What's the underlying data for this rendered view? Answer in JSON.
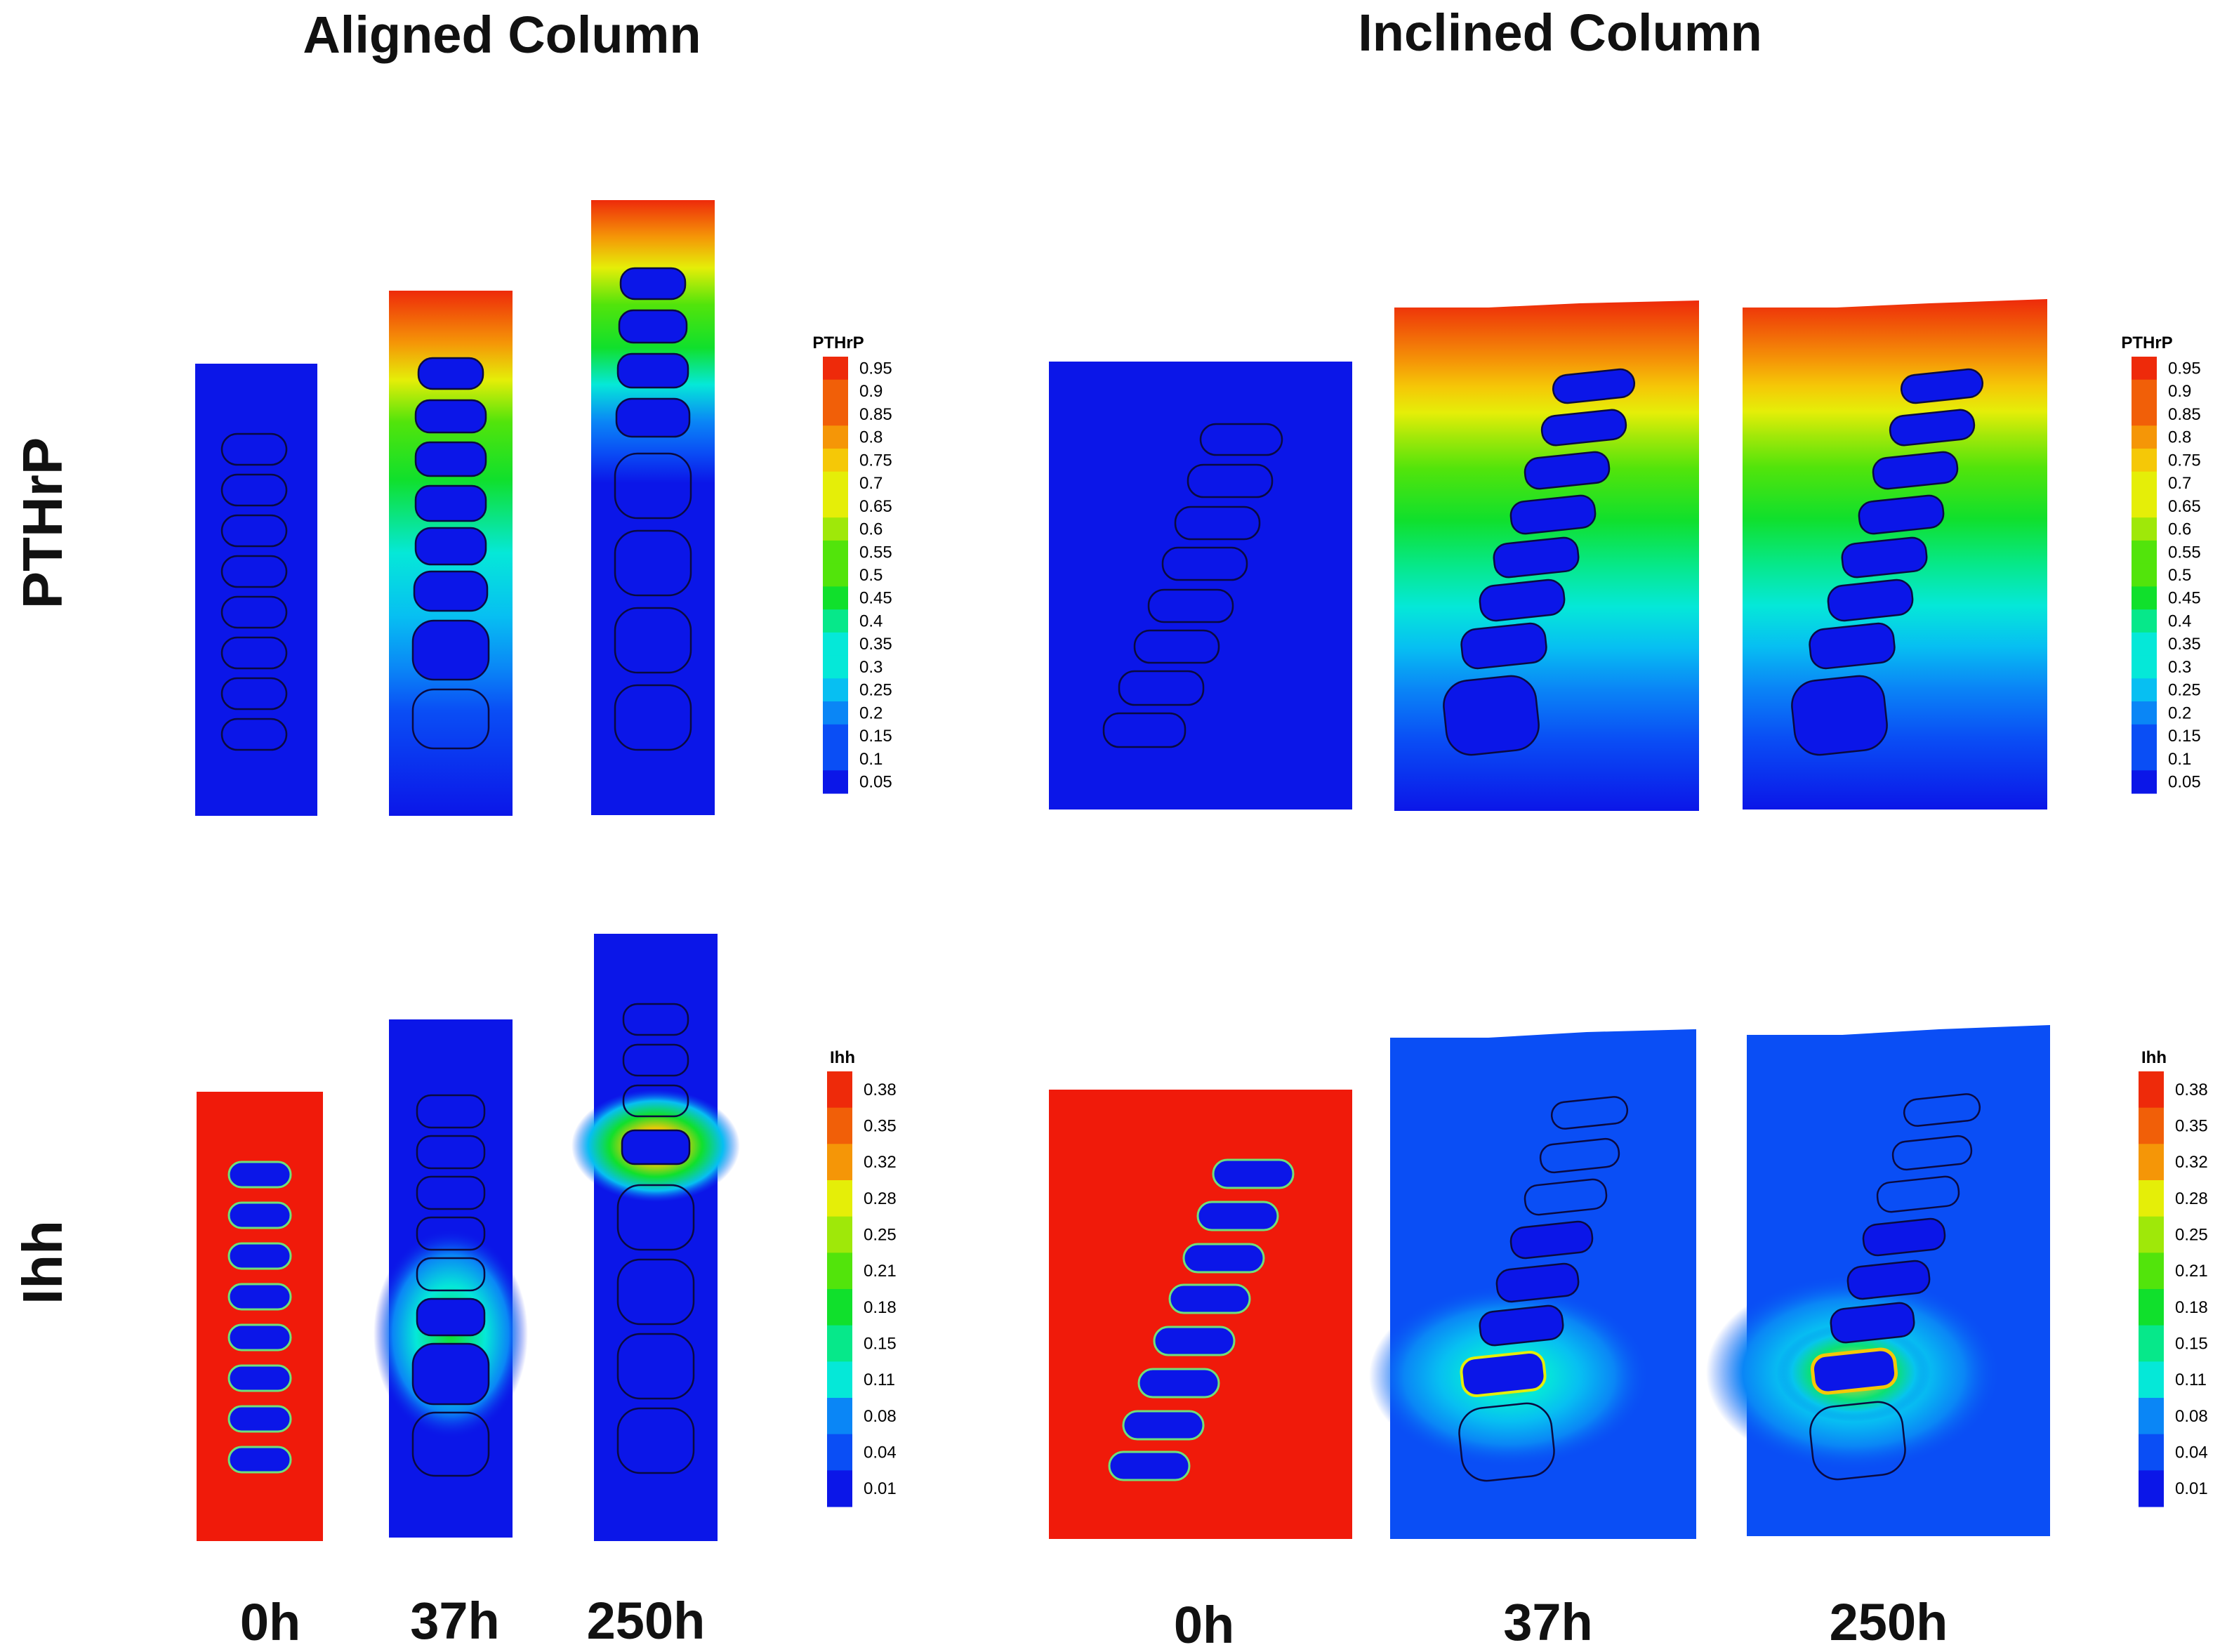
{
  "titles": {
    "aligned": "Aligned Column",
    "inclined": "Inclined Column"
  },
  "rows": {
    "pthrp": "PTHrP",
    "ihh": "Ihh"
  },
  "times": [
    "0h",
    "37h",
    "250h"
  ],
  "colorbars": {
    "pthrp": {
      "title": "PTHrP",
      "ticks": [
        "0.95",
        "0.9",
        "0.85",
        "0.8",
        "0.75",
        "0.7",
        "0.65",
        "0.6",
        "0.55",
        "0.5",
        "0.45",
        "0.4",
        "0.35",
        "0.3",
        "0.25",
        "0.2",
        "0.15",
        "0.1",
        "0.05"
      ]
    },
    "ihh": {
      "title": "Ihh",
      "ticks": [
        "0.38",
        "0.35",
        "0.32",
        "0.28",
        "0.25",
        "0.21",
        "0.18",
        "0.15",
        "0.11",
        "0.08",
        "0.04",
        "0.01"
      ]
    }
  },
  "colors": {
    "background": "#0a1ff0",
    "high": "#f01a0a",
    "scale": [
      "#0b16e8",
      "#0a4ef5",
      "#0a86f6",
      "#07bff2",
      "#05e8d8",
      "#06e88a",
      "#10e02c",
      "#52e40b",
      "#9fe809",
      "#e5ee08",
      "#f5c807",
      "#f59607",
      "#f15f08",
      "#ee2a0a"
    ]
  }
}
